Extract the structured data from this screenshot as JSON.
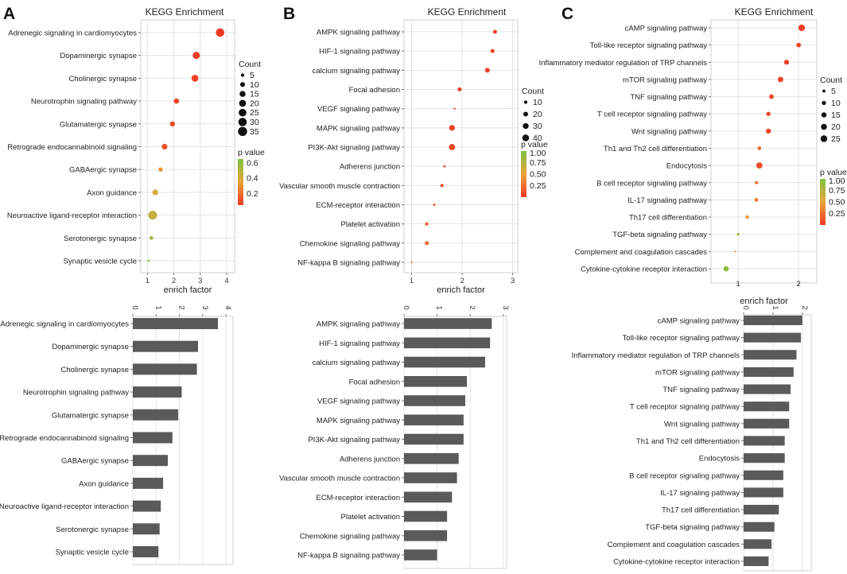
{
  "colors": {
    "high_p": "#7cc441",
    "mid_p": "#e8a33a",
    "low_p": "#ef3a26",
    "bar": "#5a5a5a",
    "grid": "#e4e4e4",
    "frame": "#cfcfcf"
  },
  "chart_data": [
    {
      "panel": "A",
      "type": "scatter",
      "title": "KEGG Enrichment",
      "xlabel": "enrich factor",
      "xlim": [
        0.75,
        4.3
      ],
      "xticks": [
        "1",
        "2",
        "3",
        "4"
      ],
      "categories": [
        "Adrenegic signaling in cardiomyocytes",
        "Dopaminergic synapse",
        "Cholinergic synapse",
        "Neurotrophin signaling pathway",
        "Glutamatergic synapse",
        "Retrograde endocannabinoid signaling",
        "GABAergic synapse",
        "Axon guidance",
        "Neuroactive ligand-receptor interaction",
        "Serotonergic synapse",
        "Synaptic vesicle cycle"
      ],
      "enrich_factor": [
        3.75,
        2.85,
        2.8,
        2.1,
        1.95,
        1.65,
        1.5,
        1.3,
        1.2,
        1.15,
        1.05
      ],
      "count": [
        30,
        22,
        20,
        12,
        11,
        14,
        8,
        14,
        32,
        6,
        2
      ],
      "p_value": [
        0.05,
        0.06,
        0.07,
        0.08,
        0.1,
        0.12,
        0.3,
        0.4,
        0.45,
        0.55,
        0.62
      ],
      "count_legend": {
        "title": "Count",
        "values": [
          "5",
          "10",
          "15",
          "20",
          "25",
          "30",
          "35"
        ]
      },
      "p_legend": {
        "title": "p value",
        "min": 0.05,
        "max": 0.65,
        "labels": [
          "0.6",
          "0.4",
          "0.2"
        ]
      }
    },
    {
      "panel": "B",
      "type": "scatter",
      "title": "KEGG Enrichment",
      "xlabel": "enrich factor",
      "xlim": [
        0.85,
        3.1
      ],
      "xticks": [
        "1",
        "2",
        "3"
      ],
      "categories": [
        "AMPK signaling pathway",
        "HIF-1 signaling pathway",
        "calcium signaling pathway",
        "Focal adhesion",
        "VEGF signaling pathway",
        "MAPK signaling pathway",
        "PI3K-Akt signaling pathway",
        "Adherens junction",
        "Vascular smooth muscle contraction",
        "ECM-receptor interaction",
        "Platelet activation",
        "Chemokine signaling pathway",
        "NF-kappa B signaling pathway"
      ],
      "enrich_factor": [
        2.65,
        2.6,
        2.5,
        1.95,
        1.85,
        1.8,
        1.8,
        1.65,
        1.6,
        1.45,
        1.3,
        1.3,
        1.0
      ],
      "count": [
        14,
        14,
        20,
        14,
        2,
        30,
        34,
        5,
        10,
        5,
        10,
        14,
        2
      ],
      "p_value": [
        0.02,
        0.02,
        0.03,
        0.04,
        0.05,
        0.05,
        0.06,
        0.1,
        0.1,
        0.15,
        0.2,
        0.22,
        0.35
      ],
      "count_legend": {
        "title": "Count",
        "values": [
          "10",
          "20",
          "30",
          "40"
        ]
      },
      "p_legend": {
        "title": "p value",
        "min": 0.0,
        "max": 1.0,
        "labels": [
          "1.00",
          "0.75",
          "0.50",
          "0.25"
        ]
      }
    },
    {
      "panel": "C",
      "type": "scatter",
      "title": "KEGG Enrichment",
      "xlabel": "enrich factor",
      "xlim": [
        0.55,
        2.3
      ],
      "xticks": [
        "1",
        "2"
      ],
      "categories": [
        "cAMP signaling pathway",
        "Toll-like receptor signaling pathway",
        "Inflammatory mediator regulation of TRP channels",
        "mTOR signaling pathway",
        "TNF signaling pathway",
        "T cell receptor signaling pathway",
        "Wnt signaling pathway",
        "Th1 and Th2 cell differentiation",
        "Endocytosis",
        "B cell receptor signaling pathway",
        "IL-17 signaling pathway",
        "Th17 cell differentiation",
        "TGF-beta signaling pathway",
        "Complement and coagulation cascades",
        "Cytokine-cytokine receptor interaction"
      ],
      "enrich_factor": [
        2.05,
        2.0,
        1.8,
        1.7,
        1.55,
        1.5,
        1.5,
        1.35,
        1.35,
        1.3,
        1.3,
        1.15,
        1.0,
        0.95,
        0.8
      ],
      "count": [
        24,
        12,
        14,
        17,
        12,
        10,
        14,
        8,
        22,
        6,
        8,
        8,
        4,
        2,
        16
      ],
      "p_value": [
        0.03,
        0.03,
        0.04,
        0.04,
        0.05,
        0.05,
        0.06,
        0.2,
        0.08,
        0.3,
        0.3,
        0.5,
        0.8,
        0.6,
        0.9
      ],
      "count_legend": {
        "title": "Count",
        "values": [
          "5",
          "10",
          "15",
          "20",
          "25"
        ]
      },
      "p_legend": {
        "title": "p value",
        "min": 0.0,
        "max": 1.0,
        "labels": [
          "1.00",
          "0.75",
          "0.50",
          "0.25"
        ]
      }
    },
    {
      "panel": "A",
      "type": "bar",
      "orientation": "horizontal",
      "xlim": [
        0,
        4.3
      ],
      "xticks": [
        "0",
        "1",
        "2",
        "3",
        "4"
      ],
      "categories": [
        "Adrenegic signaling in cardiomyocytes",
        "Dopaminergic synapse",
        "Cholinergic synapse",
        "Neurotrophin signaling pathway",
        "Glutamatergic synapse",
        "Retrograde endocannabinoid signaling",
        "GABAergic synapse",
        "Axon guidance",
        "Neuroactive ligand-receptor interaction",
        "Serotonergic synapse",
        "Synaptic vesicle cycle"
      ],
      "values": [
        3.65,
        2.8,
        2.75,
        2.1,
        1.95,
        1.7,
        1.5,
        1.3,
        1.2,
        1.15,
        1.1
      ]
    },
    {
      "panel": "B",
      "type": "bar",
      "orientation": "horizontal",
      "xlim": [
        0,
        3.1
      ],
      "xticks": [
        "0",
        "1",
        "2",
        "3"
      ],
      "categories": [
        "AMPK signaling pathway",
        "HIF-1 signaling pathway",
        "calcium signaling pathway",
        "Focal adhesion",
        "VEGF signaling pathway",
        "MAPK signaling pathway",
        "PI3K-Akt signaling pathway",
        "Adherens junction",
        "Vascular smooth muscle contraction",
        "ECM-receptor interaction",
        "Platelet activation",
        "Chemokine signaling pathway",
        "NF-kappa B signaling pathway"
      ],
      "values": [
        2.65,
        2.6,
        2.45,
        1.9,
        1.85,
        1.8,
        1.8,
        1.65,
        1.6,
        1.45,
        1.3,
        1.3,
        1.0
      ]
    },
    {
      "panel": "C",
      "type": "bar",
      "orientation": "horizontal",
      "xlim": [
        0,
        2.3
      ],
      "xticks": [
        "0",
        "1",
        "2"
      ],
      "categories": [
        "cAMP signaling pathway",
        "Toll-like receptor signaling pathway",
        "Inflammatory mediator regulation of TRP channels",
        "mTOR signaling pathway",
        "TNF signaling pathway",
        "T cell receptor signaling pathway",
        "Wnt signaling pathway",
        "Th1 and Th2 cell differentiation",
        "Endocytosis",
        "B cell receptor signaling pathway",
        "IL-17 signaling pathway",
        "Th17 cell differentiation",
        "TGF-beta signaling pathway",
        "Complement and coagulation cascades",
        "Cytokine-cytokine receptor interaction"
      ],
      "values": [
        2.0,
        1.95,
        1.8,
        1.7,
        1.6,
        1.55,
        1.55,
        1.4,
        1.4,
        1.35,
        1.35,
        1.2,
        1.05,
        0.95,
        0.85
      ]
    }
  ]
}
